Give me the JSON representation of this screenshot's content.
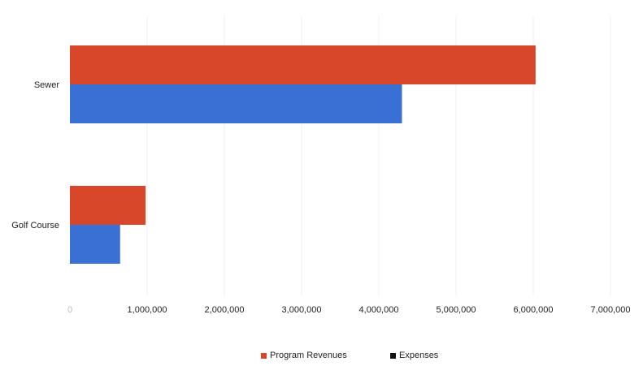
{
  "chart_data": {
    "type": "bar",
    "orientation": "horizontal",
    "categories": [
      "Sewer",
      "Golf Course"
    ],
    "series": [
      {
        "name": "Program Revenues",
        "values": [
          6030000,
          980000
        ],
        "color": "#d9472b"
      },
      {
        "name": "Expenses",
        "values": [
          4300000,
          650000
        ],
        "color": "#3a6fd4"
      }
    ],
    "xlim": [
      0,
      7000000
    ],
    "x_ticks": [
      0,
      1000000,
      2000000,
      3000000,
      4000000,
      5000000,
      6000000,
      7000000
    ],
    "x_tick_labels": [
      "0",
      "1,000,000",
      "2,000,000",
      "3,000,000",
      "4,000,000",
      "5,000,000",
      "6,000,000",
      "7,000,000"
    ],
    "legend": {
      "position": "bottom",
      "marker_colors": [
        "#d9472b",
        "#111111"
      ]
    },
    "grid": true,
    "title": "",
    "xlabel": "",
    "ylabel": ""
  }
}
